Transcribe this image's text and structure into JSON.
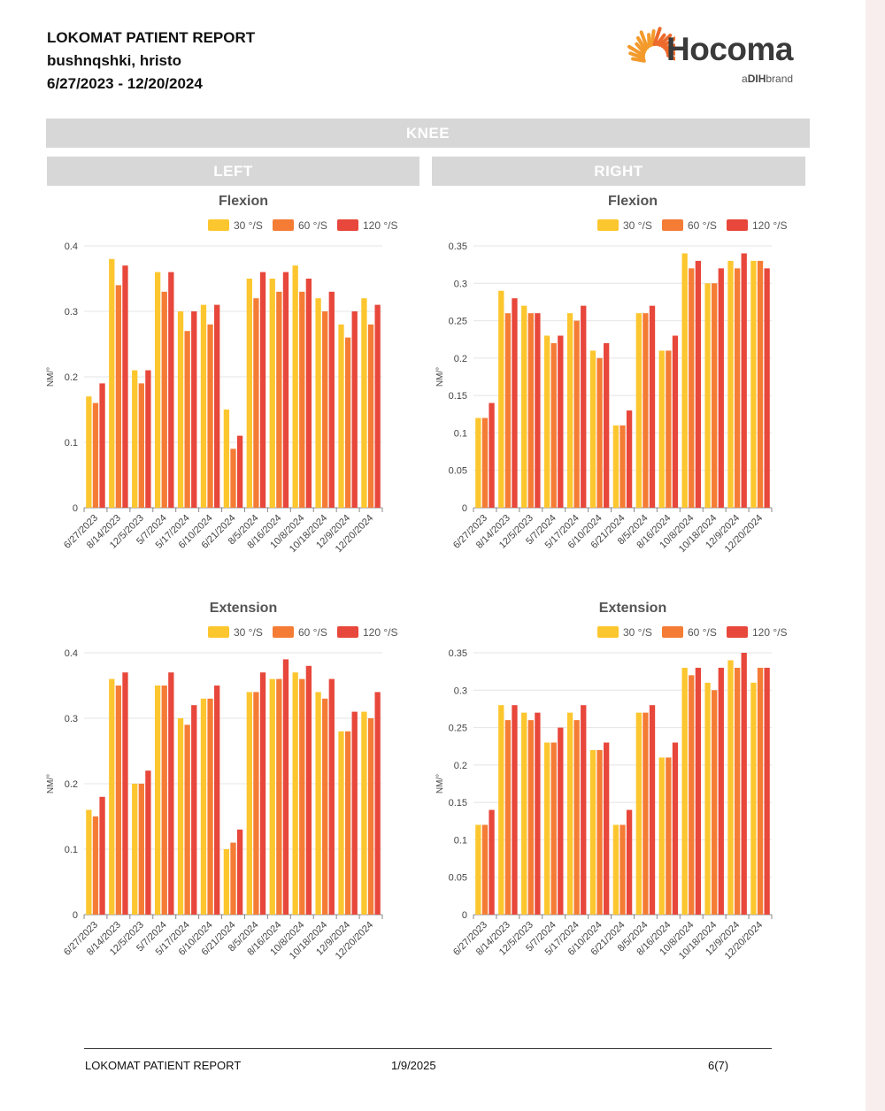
{
  "header": {
    "report_title": "LOKOMAT PATIENT REPORT",
    "patient_name": "bushnqshki, hristo",
    "date_range": "6/27/2023 - 12/20/2024"
  },
  "logo": {
    "brand": "Hocoma",
    "sub_prefix": "a",
    "sub_brand": "DIH",
    "sub_suffix": "brand"
  },
  "section_title": "KNEE",
  "side_left": "LEFT",
  "side_right": "RIGHT",
  "footer": {
    "title": "LOKOMAT PATIENT REPORT",
    "date": "1/9/2025",
    "page": "6(7)"
  },
  "colors": {
    "s30": "#fcc62e",
    "s60": "#f57c35",
    "s120": "#e8473b",
    "banner": "#d7d7d7"
  },
  "chart_data": [
    {
      "id": "left-flexion",
      "type": "bar",
      "title": "Flexion",
      "ylabel": "NM/°",
      "xlabel": "",
      "ylim": [
        0,
        0.4
      ],
      "yticks": [
        0,
        0.1,
        0.2,
        0.3,
        0.4
      ],
      "yticklabels": [
        "0",
        "0.1",
        "0.2",
        "0.3",
        "0.4"
      ],
      "grid": true,
      "legend": "top",
      "categories": [
        "6/27/2023",
        "8/14/2023",
        "12/5/2023",
        "5/7/2024",
        "5/17/2024",
        "6/10/2024",
        "6/21/2024",
        "8/5/2024",
        "8/16/2024",
        "10/8/2024",
        "10/18/2024",
        "12/9/2024",
        "12/20/2024"
      ],
      "series": [
        {
          "name": "30 °/S",
          "color": "#fcc62e",
          "values": [
            0.17,
            0.38,
            0.21,
            0.36,
            0.3,
            0.31,
            0.15,
            0.35,
            0.35,
            0.37,
            0.32,
            0.28,
            0.32
          ]
        },
        {
          "name": "60 °/S",
          "color": "#f57c35",
          "values": [
            0.16,
            0.34,
            0.19,
            0.33,
            0.27,
            0.28,
            0.09,
            0.32,
            0.33,
            0.33,
            0.3,
            0.26,
            0.28
          ]
        },
        {
          "name": "120 °/S",
          "color": "#e8473b",
          "values": [
            0.19,
            0.37,
            0.21,
            0.36,
            0.3,
            0.31,
            0.11,
            0.36,
            0.36,
            0.35,
            0.33,
            0.3,
            0.31
          ]
        }
      ]
    },
    {
      "id": "right-flexion",
      "type": "bar",
      "title": "Flexion",
      "ylabel": "NM/°",
      "xlabel": "",
      "ylim": [
        0,
        0.35
      ],
      "yticks": [
        0,
        0.05,
        0.1,
        0.15,
        0.2,
        0.25,
        0.3,
        0.35
      ],
      "yticklabels": [
        "0",
        "0.05",
        "0.1",
        "0.15",
        "0.2",
        "0.25",
        "0.3",
        "0.35"
      ],
      "grid": true,
      "legend": "top",
      "categories": [
        "6/27/2023",
        "8/14/2023",
        "12/5/2023",
        "5/7/2024",
        "5/17/2024",
        "6/10/2024",
        "6/21/2024",
        "8/5/2024",
        "8/16/2024",
        "10/8/2024",
        "10/18/2024",
        "12/9/2024",
        "12/20/2024"
      ],
      "series": [
        {
          "name": "30 °/S",
          "color": "#fcc62e",
          "values": [
            0.12,
            0.29,
            0.27,
            0.23,
            0.26,
            0.21,
            0.11,
            0.26,
            0.21,
            0.34,
            0.3,
            0.33,
            0.33
          ]
        },
        {
          "name": "60 °/S",
          "color": "#f57c35",
          "values": [
            0.12,
            0.26,
            0.26,
            0.22,
            0.25,
            0.2,
            0.11,
            0.26,
            0.21,
            0.32,
            0.3,
            0.32,
            0.33
          ]
        },
        {
          "name": "120 °/S",
          "color": "#e8473b",
          "values": [
            0.14,
            0.28,
            0.26,
            0.23,
            0.27,
            0.22,
            0.13,
            0.27,
            0.23,
            0.33,
            0.32,
            0.34,
            0.32
          ]
        }
      ]
    },
    {
      "id": "left-extension",
      "type": "bar",
      "title": "Extension",
      "ylabel": "NM/°",
      "xlabel": "",
      "ylim": [
        0,
        0.4
      ],
      "yticks": [
        0,
        0.1,
        0.2,
        0.3,
        0.4
      ],
      "yticklabels": [
        "0",
        "0.1",
        "0.2",
        "0.3",
        "0.4"
      ],
      "grid": true,
      "legend": "top",
      "categories": [
        "6/27/2023",
        "8/14/2023",
        "12/5/2023",
        "5/7/2024",
        "5/17/2024",
        "6/10/2024",
        "6/21/2024",
        "8/5/2024",
        "8/16/2024",
        "10/8/2024",
        "10/18/2024",
        "12/9/2024",
        "12/20/2024"
      ],
      "series": [
        {
          "name": "30 °/S",
          "color": "#fcc62e",
          "values": [
            0.16,
            0.36,
            0.2,
            0.35,
            0.3,
            0.33,
            0.1,
            0.34,
            0.36,
            0.37,
            0.34,
            0.28,
            0.31
          ]
        },
        {
          "name": "60 °/S",
          "color": "#f57c35",
          "values": [
            0.15,
            0.35,
            0.2,
            0.35,
            0.29,
            0.33,
            0.11,
            0.34,
            0.36,
            0.36,
            0.33,
            0.28,
            0.3
          ]
        },
        {
          "name": "120 °/S",
          "color": "#e8473b",
          "values": [
            0.18,
            0.37,
            0.22,
            0.37,
            0.32,
            0.35,
            0.13,
            0.37,
            0.39,
            0.38,
            0.36,
            0.31,
            0.34
          ]
        }
      ]
    },
    {
      "id": "right-extension",
      "type": "bar",
      "title": "Extension",
      "ylabel": "NM/°",
      "xlabel": "",
      "ylim": [
        0,
        0.35
      ],
      "yticks": [
        0,
        0.05,
        0.1,
        0.15,
        0.2,
        0.25,
        0.3,
        0.35
      ],
      "yticklabels": [
        "0",
        "0.05",
        "0.1",
        "0.15",
        "0.2",
        "0.25",
        "0.3",
        "0.35"
      ],
      "grid": true,
      "legend": "top",
      "categories": [
        "6/27/2023",
        "8/14/2023",
        "12/5/2023",
        "5/7/2024",
        "5/17/2024",
        "6/10/2024",
        "6/21/2024",
        "8/5/2024",
        "8/16/2024",
        "10/8/2024",
        "10/18/2024",
        "12/9/2024",
        "12/20/2024"
      ],
      "series": [
        {
          "name": "30 °/S",
          "color": "#fcc62e",
          "values": [
            0.12,
            0.28,
            0.27,
            0.23,
            0.27,
            0.22,
            0.12,
            0.27,
            0.21,
            0.33,
            0.31,
            0.34,
            0.31
          ]
        },
        {
          "name": "60 °/S",
          "color": "#f57c35",
          "values": [
            0.12,
            0.26,
            0.26,
            0.23,
            0.26,
            0.22,
            0.12,
            0.27,
            0.21,
            0.32,
            0.3,
            0.33,
            0.33
          ]
        },
        {
          "name": "120 °/S",
          "color": "#e8473b",
          "values": [
            0.14,
            0.28,
            0.27,
            0.25,
            0.28,
            0.23,
            0.14,
            0.28,
            0.23,
            0.33,
            0.33,
            0.35,
            0.33
          ]
        }
      ]
    }
  ]
}
